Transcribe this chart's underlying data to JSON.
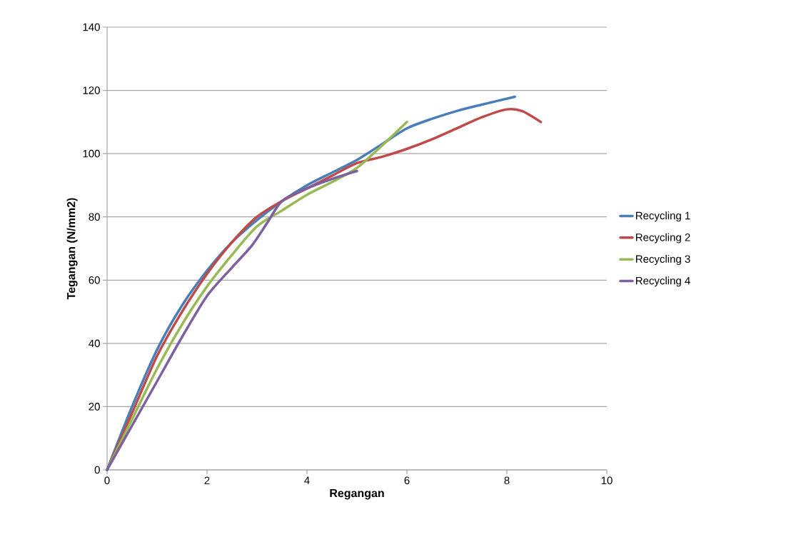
{
  "chart_data": {
    "type": "line",
    "xlabel": "Regangan",
    "ylabel": "Tegangan (N/mm2)",
    "xlim": [
      0,
      10
    ],
    "ylim": [
      0,
      140
    ],
    "xticks": [
      0,
      2,
      4,
      6,
      8,
      10
    ],
    "yticks": [
      0,
      20,
      40,
      60,
      80,
      100,
      120,
      140
    ],
    "grid": "y",
    "legend": "right",
    "series": [
      {
        "name": "Recycling 1",
        "color": "#4a7ebb",
        "x": [
          0,
          0.5,
          1,
          1.5,
          2,
          2.5,
          3,
          3.5,
          4,
          4.5,
          5,
          5.5,
          6,
          6.5,
          7,
          7.5,
          8.16
        ],
        "values": [
          0,
          20,
          38,
          52,
          63,
          72,
          79,
          85,
          90,
          94,
          98,
          103,
          108,
          111,
          113.5,
          115.5,
          118
        ]
      },
      {
        "name": "Recycling 2",
        "color": "#be4b48",
        "x": [
          0,
          0.5,
          1,
          1.5,
          2,
          2.5,
          3,
          3.5,
          4,
          4.5,
          5,
          5.5,
          6,
          6.5,
          7,
          7.5,
          8,
          8.3,
          8.68
        ],
        "values": [
          0,
          18,
          36,
          50,
          62,
          72,
          80,
          85,
          89,
          93,
          97,
          99,
          101.5,
          104.5,
          108,
          111.5,
          114,
          113.5,
          110
        ]
      },
      {
        "name": "Recycling 3",
        "color": "#98b954",
        "x": [
          0,
          0.5,
          1,
          1.5,
          2,
          2.5,
          3,
          3.5,
          4,
          4.5,
          5,
          5.5,
          6
        ],
        "values": [
          0,
          16,
          32,
          46,
          58,
          68,
          77,
          82,
          87,
          91,
          95.5,
          102.5,
          110
        ]
      },
      {
        "name": "Recycling 4",
        "color": "#7d60a0",
        "x": [
          0,
          0.5,
          1,
          1.5,
          2,
          2.5,
          2.9,
          3.2,
          3.5,
          4,
          4.5,
          5
        ],
        "values": [
          0,
          14,
          28,
          42,
          55,
          64,
          71,
          78,
          85,
          89,
          92,
          94.5
        ]
      }
    ]
  }
}
